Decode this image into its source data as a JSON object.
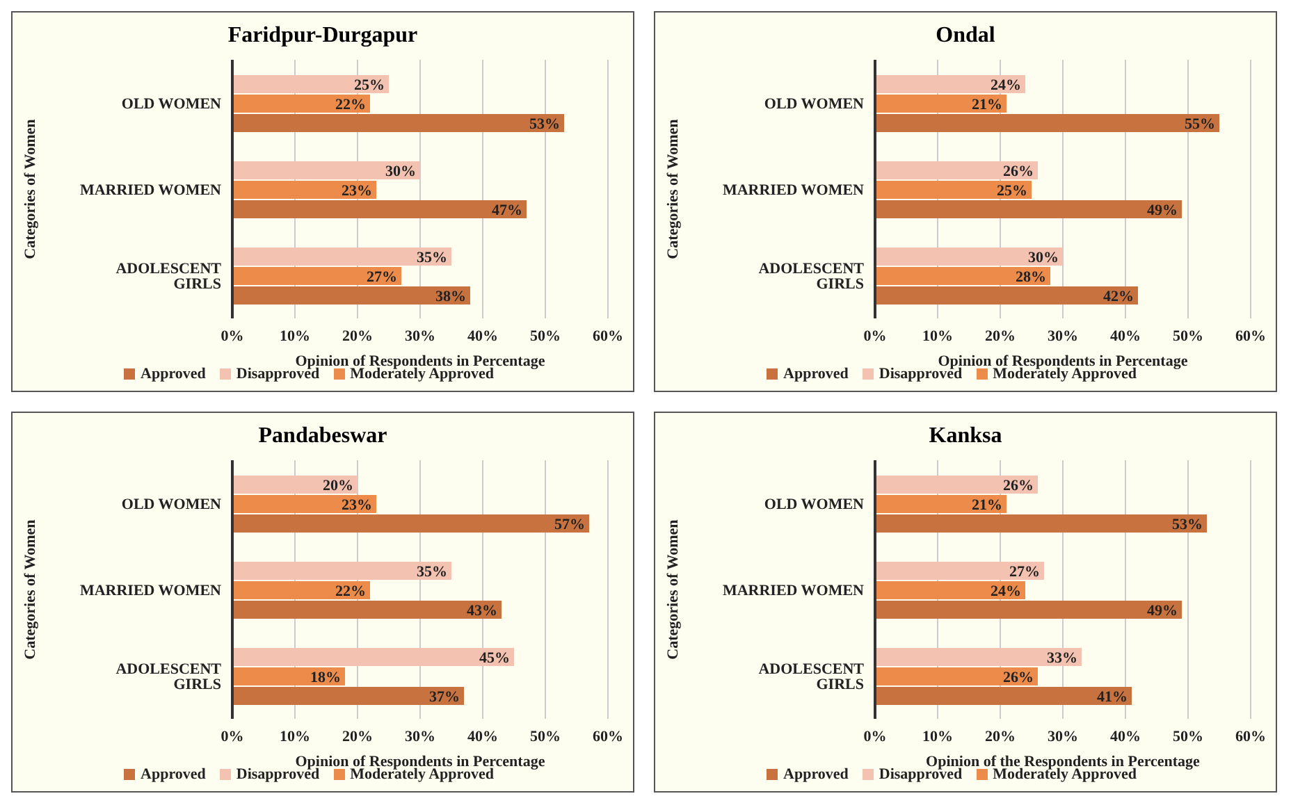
{
  "chart_data": [
    {
      "type": "bar",
      "orientation": "horizontal",
      "title": "Faridpur-Durgapur",
      "xlabel": "Opinion of Respondents in Percentage",
      "ylabel": "Categories of Women",
      "categories": [
        "OLD WOMEN",
        "MARRIED WOMEN",
        "ADOLESCENT GIRLS"
      ],
      "series": [
        {
          "name": "Disapproved",
          "color": "#f4c2b0",
          "values": [
            25,
            30,
            35
          ],
          "value_labels": [
            "25%",
            "30%",
            "35%"
          ]
        },
        {
          "name": "Moderately Approved",
          "color": "#ed8b4a",
          "values": [
            22,
            23,
            27
          ],
          "value_labels": [
            "22%",
            "23%",
            "27%"
          ]
        },
        {
          "name": "Approved",
          "color": "#c8723f",
          "values": [
            53,
            47,
            38
          ],
          "value_labels": [
            "53%",
            "47%",
            "38%"
          ]
        }
      ],
      "xlim": [
        0,
        60
      ],
      "xticks": [
        {
          "value": 0,
          "label": "0%"
        },
        {
          "value": 10,
          "label": "10%"
        },
        {
          "value": 20,
          "label": "20%"
        },
        {
          "value": 30,
          "label": "30%"
        },
        {
          "value": 40,
          "label": "40%"
        },
        {
          "value": 50,
          "label": "50%"
        },
        {
          "value": 60,
          "label": "60%"
        }
      ],
      "grid": "x",
      "legend": "bottom"
    },
    {
      "type": "bar",
      "orientation": "horizontal",
      "title": "Ondal",
      "xlabel": "Opinion of Respondents in Percentage",
      "ylabel": "Categories of Women",
      "categories": [
        "OLD WOMEN",
        "MARRIED WOMEN",
        "ADOLESCENT GIRLS"
      ],
      "series": [
        {
          "name": "Disapproved",
          "color": "#f4c2b0",
          "values": [
            24,
            26,
            30
          ],
          "value_labels": [
            "24%",
            "26%",
            "30%"
          ]
        },
        {
          "name": "Moderately Approved",
          "color": "#ed8b4a",
          "values": [
            21,
            25,
            28
          ],
          "value_labels": [
            "21%",
            "25%",
            "28%"
          ]
        },
        {
          "name": "Approved",
          "color": "#c8723f",
          "values": [
            55,
            49,
            42
          ],
          "value_labels": [
            "55%",
            "49%",
            "42%"
          ]
        }
      ],
      "xlim": [
        0,
        60
      ],
      "xticks": [
        {
          "value": 0,
          "label": "0%"
        },
        {
          "value": 10,
          "label": "10%"
        },
        {
          "value": 20,
          "label": "20%"
        },
        {
          "value": 30,
          "label": "30%"
        },
        {
          "value": 40,
          "label": "40%"
        },
        {
          "value": 50,
          "label": "50%"
        },
        {
          "value": 60,
          "label": "60%"
        }
      ],
      "grid": "x",
      "legend": "bottom"
    },
    {
      "type": "bar",
      "orientation": "horizontal",
      "title": "Pandabeswar",
      "xlabel": "Opinion of Respondents in Percentage",
      "ylabel": "Categories of Women",
      "categories": [
        "OLD WOMEN",
        "MARRIED WOMEN",
        "ADOLESCENT GIRLS"
      ],
      "series": [
        {
          "name": "Disapproved",
          "color": "#f4c2b0",
          "values": [
            20,
            35,
            45
          ],
          "value_labels": [
            "20%",
            "35%",
            "45%"
          ]
        },
        {
          "name": "Moderately Approved",
          "color": "#ed8b4a",
          "values": [
            23,
            22,
            18
          ],
          "value_labels": [
            "23%",
            "22%",
            "18%"
          ]
        },
        {
          "name": "Approved",
          "color": "#c8723f",
          "values": [
            57,
            43,
            37
          ],
          "value_labels": [
            "57%",
            "43%",
            "37%"
          ]
        }
      ],
      "xlim": [
        0,
        60
      ],
      "xticks": [
        {
          "value": 0,
          "label": "0%"
        },
        {
          "value": 10,
          "label": "10%"
        },
        {
          "value": 20,
          "label": "20%"
        },
        {
          "value": 30,
          "label": "30%"
        },
        {
          "value": 40,
          "label": "40%"
        },
        {
          "value": 50,
          "label": "50%"
        },
        {
          "value": 60,
          "label": "60%"
        }
      ],
      "grid": "x",
      "legend": "bottom"
    },
    {
      "type": "bar",
      "orientation": "horizontal",
      "title": "Kanksa",
      "xlabel": "Opinion of the Respondents in Percentage",
      "ylabel": "Categories of Women",
      "categories": [
        "OLD WOMEN",
        "MARRIED WOMEN",
        "ADOLESCENT GIRLS"
      ],
      "series": [
        {
          "name": "Disapproved",
          "color": "#f4c2b0",
          "values": [
            26,
            27,
            33
          ],
          "value_labels": [
            "26%",
            "27%",
            "33%"
          ]
        },
        {
          "name": "Moderately Approved",
          "color": "#ed8b4a",
          "values": [
            21,
            24,
            26
          ],
          "value_labels": [
            "21%",
            "24%",
            "26%"
          ]
        },
        {
          "name": "Approved",
          "color": "#c8723f",
          "values": [
            53,
            49,
            41
          ],
          "value_labels": [
            "53%",
            "49%",
            "41%"
          ]
        }
      ],
      "xlim": [
        0,
        60
      ],
      "xticks": [
        {
          "value": 0,
          "label": "0%"
        },
        {
          "value": 10,
          "label": "10%"
        },
        {
          "value": 20,
          "label": "20%"
        },
        {
          "value": 30,
          "label": "30%"
        },
        {
          "value": 40,
          "label": "40%"
        },
        {
          "value": 50,
          "label": "50%"
        },
        {
          "value": 60,
          "label": "60%"
        }
      ],
      "grid": "x",
      "legend": "bottom"
    }
  ]
}
